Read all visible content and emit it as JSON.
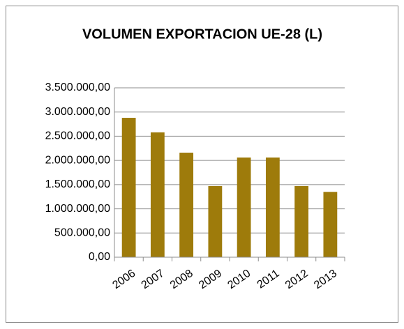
{
  "chart_data": {
    "type": "bar",
    "title": "VOLUMEN EXPORTACION UE-28 (L)",
    "categories": [
      "2006",
      "2007",
      "2008",
      "2009",
      "2010",
      "2011",
      "2012",
      "2013"
    ],
    "values": [
      2880000,
      2580000,
      2160000,
      1470000,
      2060000,
      2060000,
      1470000,
      1350000
    ],
    "color": "#9e7b0b",
    "ylim": [
      0,
      3500000
    ],
    "yticks": [
      {
        "value": 0,
        "label": "0,00"
      },
      {
        "value": 500000,
        "label": "500.000,00"
      },
      {
        "value": 1000000,
        "label": "1.000.000,00"
      },
      {
        "value": 1500000,
        "label": "1.500.000,00"
      },
      {
        "value": 2000000,
        "label": "2.000.000,00"
      },
      {
        "value": 2500000,
        "label": "2.500.000,00"
      },
      {
        "value": 3000000,
        "label": "3.000.000,00"
      },
      {
        "value": 3500000,
        "label": "3.500.000,00"
      }
    ],
    "grid": true
  }
}
